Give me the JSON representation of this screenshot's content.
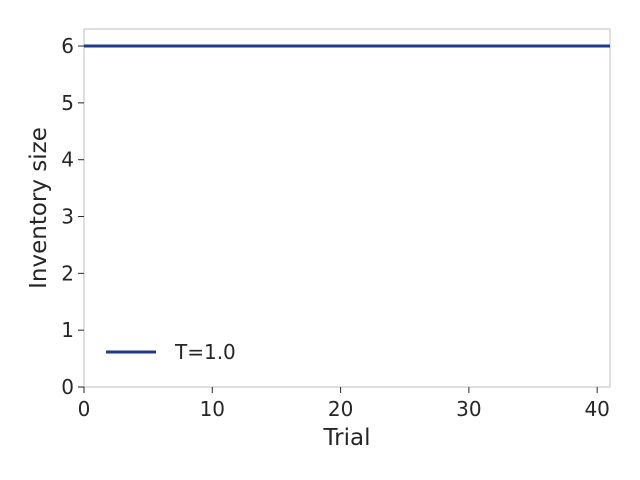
{
  "chart_data": {
    "type": "line",
    "title": "",
    "xlabel": "Trial",
    "ylabel": "Inventory size",
    "xlim": [
      0,
      41
    ],
    "ylim": [
      0,
      6.3
    ],
    "xticks": [
      0,
      10,
      20,
      30,
      40
    ],
    "yticks": [
      0,
      1,
      2,
      3,
      4,
      5,
      6
    ],
    "grid": false,
    "legend_position": "lower-left",
    "series": [
      {
        "name": "T=1.0",
        "color": "#1f3a8a",
        "x": [
          0,
          41
        ],
        "y": [
          6,
          6
        ]
      }
    ]
  }
}
